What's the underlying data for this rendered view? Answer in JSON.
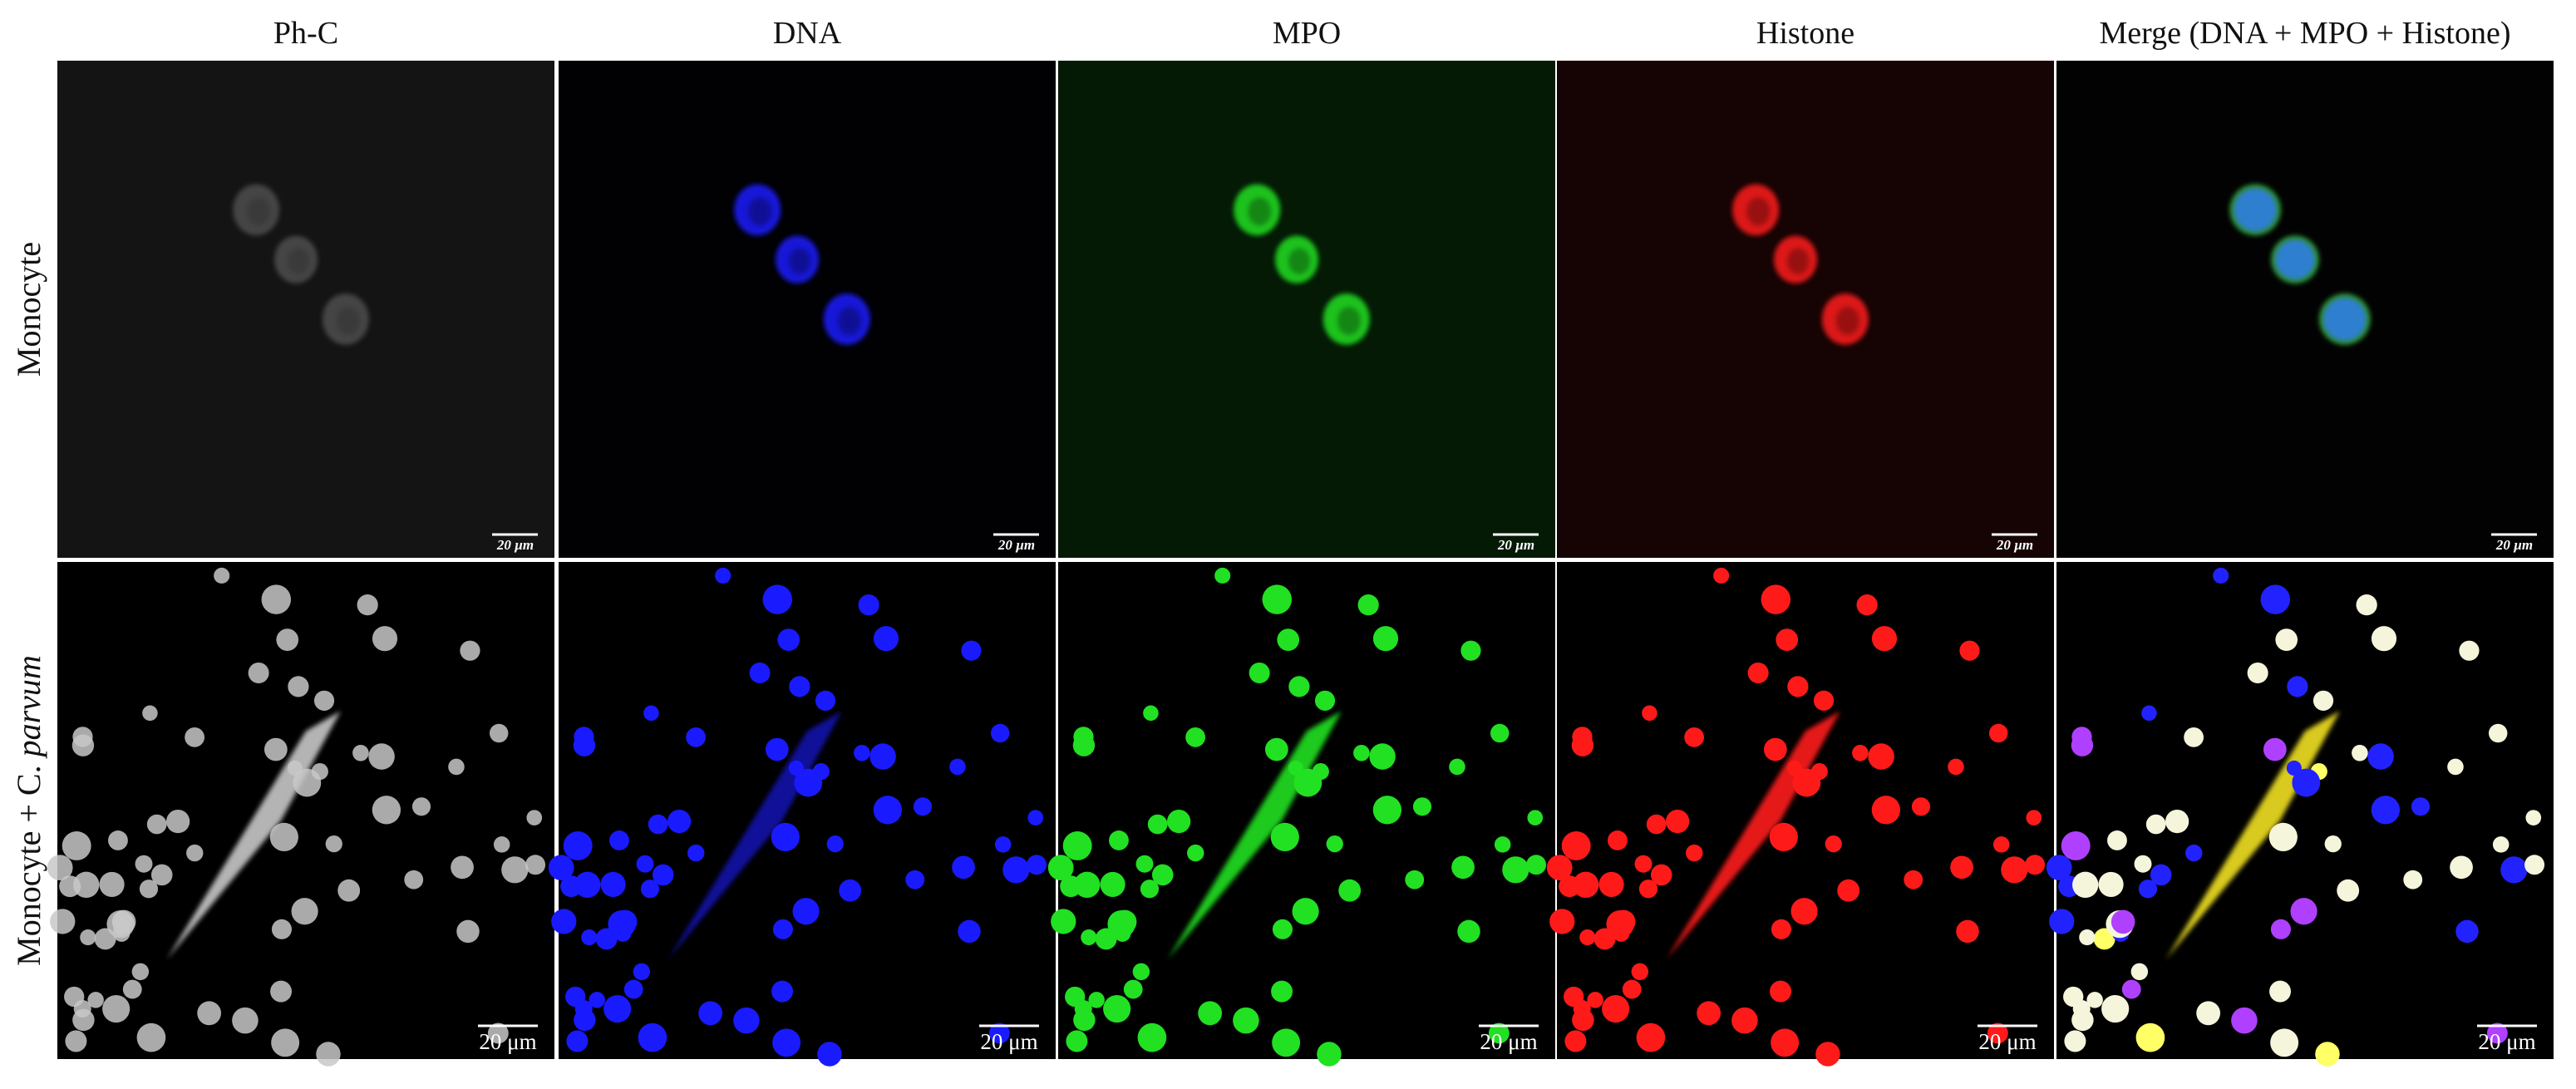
{
  "columns": [
    "Ph-C",
    "DNA",
    "MPO",
    "Histone",
    "Merge (DNA + MPO + Histone)"
  ],
  "rows": [
    {
      "label": [
        "Monocyte"
      ],
      "scale_bars": [
        "20 µm",
        "20 µm",
        "20 µm",
        "20 µm",
        "20 µm"
      ]
    },
    {
      "label": [
        "Monocyte + C. ",
        "parvum"
      ],
      "scale_bars": [
        "20 μm",
        "20 μm",
        "20 μm",
        "20 μm",
        "20 μm"
      ]
    }
  ]
}
